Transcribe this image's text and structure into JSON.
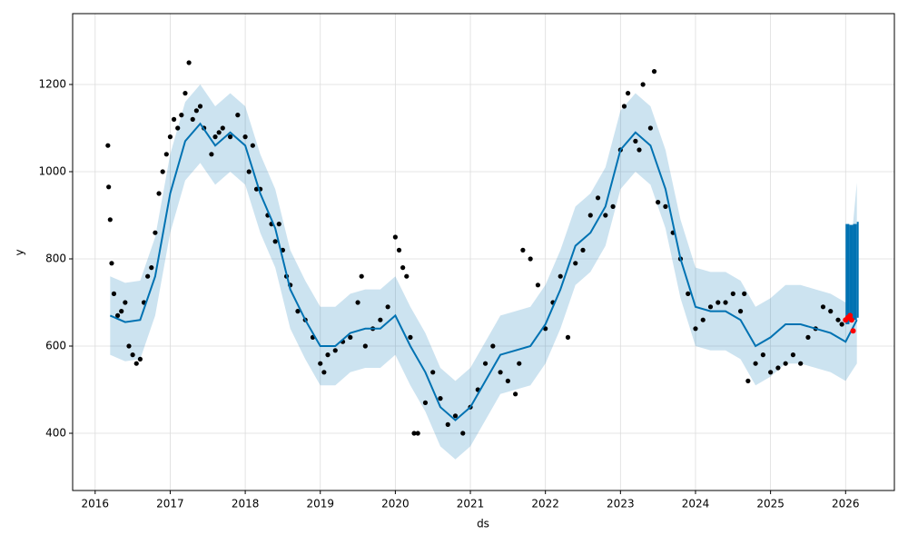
{
  "chart_data": {
    "type": "forecast",
    "xlabel": "ds",
    "ylabel": "y",
    "xlim": [
      2015.7,
      2026.65
    ],
    "ylim": [
      268.75,
      1362.5
    ],
    "xticks": [
      2016,
      2017,
      2018,
      2019,
      2020,
      2021,
      2022,
      2023,
      2024,
      2025,
      2026
    ],
    "yticks": [
      400,
      600,
      800,
      1000,
      1200
    ],
    "grid": true,
    "observed": {
      "color": "#000000",
      "x": [
        2016.17,
        2016.18,
        2016.2,
        2016.22,
        2016.25,
        2016.3,
        2016.35,
        2016.4,
        2016.45,
        2016.5,
        2016.55,
        2016.6,
        2016.65,
        2016.7,
        2016.75,
        2016.8,
        2016.85,
        2016.9,
        2016.95,
        2017.0,
        2017.05,
        2017.1,
        2017.15,
        2017.2,
        2017.25,
        2017.3,
        2017.35,
        2017.4,
        2017.45,
        2017.55,
        2017.6,
        2017.65,
        2017.7,
        2017.8,
        2017.9,
        2018.0,
        2018.05,
        2018.1,
        2018.15,
        2018.2,
        2018.3,
        2018.35,
        2018.4,
        2018.45,
        2018.5,
        2018.55,
        2018.6,
        2018.7,
        2018.8,
        2018.9,
        2019.0,
        2019.05,
        2019.1,
        2019.2,
        2019.3,
        2019.4,
        2019.5,
        2019.55,
        2019.6,
        2019.7,
        2019.8,
        2019.9,
        2020.0,
        2020.05,
        2020.1,
        2020.15,
        2020.2,
        2020.25,
        2020.3,
        2020.4,
        2020.5,
        2020.6,
        2020.7,
        2020.8,
        2020.9,
        2021.0,
        2021.1,
        2021.2,
        2021.3,
        2021.4,
        2021.5,
        2021.6,
        2021.65,
        2021.7,
        2021.8,
        2021.9,
        2022.0,
        2022.1,
        2022.2,
        2022.3,
        2022.4,
        2022.5,
        2022.6,
        2022.7,
        2022.8,
        2022.9,
        2023.0,
        2023.05,
        2023.1,
        2023.2,
        2023.25,
        2023.3,
        2023.4,
        2023.45,
        2023.5,
        2023.6,
        2023.7,
        2023.8,
        2023.9,
        2024.0,
        2024.1,
        2024.2,
        2024.3,
        2024.4,
        2024.5,
        2024.6,
        2024.65,
        2024.7,
        2024.8,
        2024.9,
        2025.0,
        2025.1,
        2025.2,
        2025.3,
        2025.4,
        2025.5,
        2025.6,
        2025.7,
        2025.8,
        2025.9,
        2025.95
      ],
      "y": [
        1060,
        965,
        890,
        790,
        720,
        670,
        680,
        700,
        600,
        580,
        560,
        570,
        700,
        760,
        780,
        860,
        950,
        1000,
        1040,
        1080,
        1120,
        1100,
        1130,
        1180,
        1250,
        1120,
        1140,
        1150,
        1100,
        1040,
        1080,
        1090,
        1100,
        1080,
        1130,
        1080,
        1000,
        1060,
        960,
        960,
        900,
        880,
        840,
        880,
        820,
        760,
        740,
        680,
        660,
        620,
        560,
        540,
        580,
        590,
        610,
        620,
        700,
        760,
        600,
        640,
        660,
        690,
        850,
        820,
        780,
        760,
        620,
        400,
        400,
        470,
        540,
        480,
        420,
        440,
        400,
        460,
        500,
        560,
        600,
        540,
        520,
        490,
        560,
        820,
        800,
        740,
        640,
        700,
        760,
        620,
        790,
        820,
        900,
        940,
        900,
        920,
        1050,
        1150,
        1180,
        1070,
        1050,
        1200,
        1100,
        1230,
        930,
        920,
        860,
        800,
        720,
        640,
        660,
        690,
        700,
        700,
        720,
        680,
        720,
        520,
        560,
        580,
        540,
        550,
        560,
        580,
        560,
        620,
        640,
        690,
        680,
        660,
        650
      ]
    },
    "forecast": {
      "color": "#0072B2",
      "x": [
        2016.2,
        2016.4,
        2016.6,
        2016.8,
        2017.0,
        2017.2,
        2017.4,
        2017.6,
        2017.8,
        2018.0,
        2018.2,
        2018.4,
        2018.6,
        2018.8,
        2019.0,
        2019.2,
        2019.4,
        2019.6,
        2019.8,
        2020.0,
        2020.2,
        2020.4,
        2020.6,
        2020.8,
        2021.0,
        2021.2,
        2021.4,
        2021.6,
        2021.8,
        2022.0,
        2022.2,
        2022.4,
        2022.6,
        2022.8,
        2023.0,
        2023.2,
        2023.4,
        2023.6,
        2023.8,
        2024.0,
        2024.2,
        2024.4,
        2024.6,
        2024.8,
        2025.0,
        2025.2,
        2025.4,
        2025.6,
        2025.8,
        2026.0,
        2026.15
      ],
      "yhat": [
        670,
        655,
        660,
        760,
        950,
        1070,
        1110,
        1060,
        1090,
        1060,
        950,
        870,
        730,
        660,
        600,
        600,
        630,
        640,
        640,
        670,
        600,
        540,
        460,
        430,
        460,
        520,
        580,
        590,
        600,
        650,
        730,
        830,
        860,
        920,
        1050,
        1090,
        1060,
        960,
        800,
        690,
        680,
        680,
        660,
        600,
        620,
        650,
        650,
        640,
        630,
        610,
        660
      ],
      "lower": [
        580,
        565,
        570,
        670,
        860,
        980,
        1020,
        970,
        1000,
        970,
        860,
        780,
        640,
        570,
        510,
        510,
        540,
        550,
        550,
        580,
        510,
        450,
        370,
        340,
        370,
        430,
        490,
        500,
        510,
        560,
        640,
        740,
        770,
        830,
        960,
        1000,
        970,
        870,
        710,
        600,
        590,
        590,
        570,
        510,
        530,
        560,
        560,
        550,
        540,
        520,
        560
      ],
      "upper": [
        760,
        745,
        750,
        850,
        1040,
        1160,
        1200,
        1150,
        1180,
        1150,
        1040,
        960,
        820,
        750,
        690,
        690,
        720,
        730,
        730,
        760,
        690,
        630,
        550,
        520,
        550,
        610,
        670,
        680,
        690,
        740,
        820,
        920,
        950,
        1010,
        1140,
        1180,
        1150,
        1050,
        890,
        780,
        770,
        770,
        750,
        690,
        710,
        740,
        740,
        730,
        720,
        700,
        975
      ]
    },
    "block": {
      "color": "#0072B2",
      "x": [
        2026.0,
        2026.05,
        2026.1,
        2026.15
      ],
      "low": [
        650,
        655,
        660,
        665
      ],
      "high": [
        880,
        878,
        880,
        885
      ]
    },
    "recent": {
      "color": "#ff0000",
      "x": [
        2026.0,
        2026.03,
        2026.06,
        2026.08,
        2026.1
      ],
      "y": [
        660,
        665,
        670,
        660,
        635
      ]
    }
  }
}
